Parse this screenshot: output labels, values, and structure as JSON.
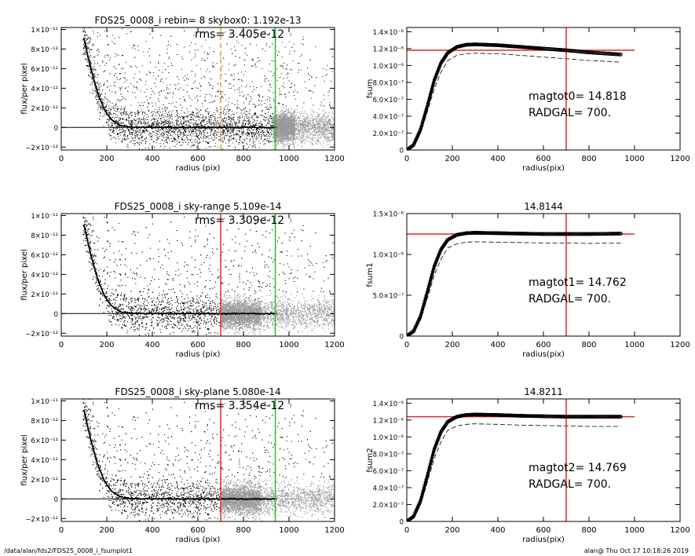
{
  "footer": {
    "path": "/data/alan/fds2/FDS25_0008_i_fsumplot1",
    "stamp": "alan@  Thu Oct 17 10:18:26 2019"
  },
  "colors": {
    "scatter_dark": "#000000",
    "scatter_light": "#9a9a9a",
    "profile": "#000000",
    "radgal_line": "#e8262a",
    "sky_line": "#22c32a",
    "skybox_dashed": "#f0a020",
    "fsum_line": "#e8262a"
  },
  "chart_data": [
    {
      "id": "row1-left",
      "type": "scatter",
      "title": "FDS25_0008_i rebin= 8    skybox0:  1.192e-13",
      "annotation": "rms= 3.405e-12",
      "xlabel": "radius (pix)",
      "ylabel": "flux/per pixel",
      "xlim": [
        0,
        1200
      ],
      "ylim": [
        -2.3e-12,
        1.02e-11
      ],
      "xticks": [
        "0",
        "200",
        "400",
        "600",
        "800",
        "1000",
        "1200"
      ],
      "yticks": [
        "1×10⁻¹¹",
        "8×10⁻¹²",
        "6×10⁻¹²",
        "4×10⁻¹²",
        "2×10⁻¹²",
        "0",
        "−2×10⁻¹²"
      ],
      "ytick_values": [
        1e-11,
        8e-12,
        6e-12,
        4e-12,
        2e-12,
        0,
        -2e-12
      ],
      "profile": {
        "x": [
          100,
          130,
          160,
          190,
          220,
          260,
          300,
          400,
          600,
          800,
          940
        ],
        "y": [
          9e-12,
          6e-12,
          3.5e-12,
          1.8e-12,
          8e-13,
          2e-13,
          5e-14,
          0,
          0,
          0,
          0
        ]
      },
      "vlines": [
        {
          "x": 700,
          "color": "#f0a020",
          "style": "dashed"
        },
        {
          "x": 940,
          "color": "#22c32a",
          "style": "solid"
        }
      ],
      "light_from": 930
    },
    {
      "id": "row1-right",
      "type": "line",
      "title": "",
      "xlabel": "radius(pix)",
      "ylabel": "fsum",
      "xlim": [
        0,
        1200
      ],
      "ylim": [
        0,
        1.45e-06
      ],
      "xticks": [
        "0",
        "200",
        "400",
        "600",
        "800",
        "1000",
        "1200"
      ],
      "yticks": [
        "1.4×10⁻⁶",
        "1.2×10⁻⁶",
        "1.0×10⁻⁶",
        "8.0×10⁻⁷",
        "6.0×10⁻⁷",
        "4.0×10⁻⁷",
        "2.0×10⁻⁷",
        "0"
      ],
      "ytick_values": [
        1.4e-06,
        1.2e-06,
        1e-06,
        8e-07,
        6e-07,
        4e-07,
        2e-07,
        0
      ],
      "fsum": {
        "x": [
          0,
          30,
          60,
          90,
          120,
          150,
          180,
          220,
          260,
          300,
          400,
          500,
          600,
          700,
          800,
          940
        ],
        "y": [
          0,
          6e-08,
          2.4e-07,
          5.2e-07,
          8.2e-07,
          1.03e-06,
          1.15e-06,
          1.22e-06,
          1.245e-06,
          1.25e-06,
          1.24e-06,
          1.22e-06,
          1.2e-06,
          1.18e-06,
          1.155e-06,
          1.13e-06
        ]
      },
      "dashed": {
        "x": [
          0,
          30,
          60,
          90,
          120,
          150,
          180,
          220,
          260,
          300,
          400,
          500,
          600,
          700,
          800,
          940
        ],
        "y": [
          0,
          5e-08,
          2e-07,
          4.5e-07,
          7.2e-07,
          9.2e-07,
          1.06e-06,
          1.12e-06,
          1.14e-06,
          1.145e-06,
          1.14e-06,
          1.12e-06,
          1.1e-06,
          1.08e-06,
          1.06e-06,
          1.04e-06
        ]
      },
      "hline": 1.18e-06,
      "vline": 700,
      "labels": [
        "magtot0=  14.818",
        "RADGAL=    700."
      ]
    },
    {
      "id": "row2-left",
      "type": "scatter",
      "title": "FDS25_0008_i sky-range  5.109e-14",
      "annotation": "rms= 3.309e-12",
      "xlabel": "radius (pix)",
      "ylabel": "flux/per pixel",
      "xlim": [
        0,
        1200
      ],
      "ylim": [
        -2.3e-12,
        1.02e-11
      ],
      "xticks": [
        "0",
        "200",
        "400",
        "600",
        "800",
        "1000",
        "1200"
      ],
      "yticks": [
        "1×10⁻¹¹",
        "8×10⁻¹²",
        "6×10⁻¹²",
        "4×10⁻¹²",
        "2×10⁻¹²",
        "0",
        "−2×10⁻¹²"
      ],
      "ytick_values": [
        1e-11,
        8e-12,
        6e-12,
        4e-12,
        2e-12,
        0,
        -2e-12
      ],
      "profile": {
        "x": [
          100,
          130,
          160,
          190,
          220,
          260,
          300,
          400,
          600,
          800,
          940
        ],
        "y": [
          9e-12,
          6e-12,
          3.5e-12,
          1.8e-12,
          8e-13,
          2e-13,
          5e-14,
          0,
          0,
          0,
          0
        ]
      },
      "vlines": [
        {
          "x": 700,
          "color": "#e8262a",
          "style": "solid"
        },
        {
          "x": 940,
          "color": "#22c32a",
          "style": "solid"
        }
      ],
      "light_from": 700
    },
    {
      "id": "row2-right",
      "type": "line",
      "title": "14.8144",
      "xlabel": "radius(pix)",
      "ylabel": "fsum1",
      "xlim": [
        0,
        1200
      ],
      "ylim": [
        0,
        1.5e-06
      ],
      "xticks": [
        "0",
        "200",
        "400",
        "600",
        "800",
        "1000",
        "1200"
      ],
      "yticks": [
        "1.5×10⁻⁶",
        "1.0×10⁻⁶",
        "5.0×10⁻⁷",
        "0"
      ],
      "ytick_values": [
        1.5e-06,
        1e-06,
        5e-07,
        0
      ],
      "fsum": {
        "x": [
          0,
          30,
          60,
          90,
          120,
          150,
          180,
          220,
          260,
          300,
          400,
          500,
          600,
          700,
          800,
          940
        ],
        "y": [
          0,
          6e-08,
          2.4e-07,
          5.4e-07,
          8.5e-07,
          1.06e-06,
          1.18e-06,
          1.24e-06,
          1.26e-06,
          1.265e-06,
          1.26e-06,
          1.255e-06,
          1.25e-06,
          1.25e-06,
          1.25e-06,
          1.255e-06
        ]
      },
      "dashed": {
        "x": [
          0,
          30,
          60,
          90,
          120,
          150,
          180,
          220,
          260,
          300,
          400,
          500,
          600,
          700,
          800,
          940
        ],
        "y": [
          0,
          5e-08,
          2e-07,
          4.6e-07,
          7.4e-07,
          9.4e-07,
          1.08e-06,
          1.13e-06,
          1.15e-06,
          1.155e-06,
          1.15e-06,
          1.145e-06,
          1.14e-06,
          1.14e-06,
          1.135e-06,
          1.14e-06
        ]
      },
      "hline": 1.25e-06,
      "vline": 700,
      "labels": [
        "magtot1=  14.762",
        "RADGAL=    700."
      ]
    },
    {
      "id": "row3-left",
      "type": "scatter",
      "title": "FDS25_0008_i sky-plane  5.080e-14",
      "annotation": "rms= 3.354e-12",
      "xlabel": "radius (pix)",
      "ylabel": "flux/per pixel",
      "xlim": [
        0,
        1200
      ],
      "ylim": [
        -2.3e-12,
        1.02e-11
      ],
      "xticks": [
        "0",
        "200",
        "400",
        "600",
        "800",
        "1000",
        "1200"
      ],
      "yticks": [
        "1×10⁻¹¹",
        "8×10⁻¹²",
        "6×10⁻¹²",
        "4×10⁻¹²",
        "2×10⁻¹²",
        "0",
        "−2×10⁻¹²"
      ],
      "ytick_values": [
        1e-11,
        8e-12,
        6e-12,
        4e-12,
        2e-12,
        0,
        -2e-12
      ],
      "profile": {
        "x": [
          100,
          130,
          160,
          190,
          220,
          260,
          300,
          400,
          600,
          800,
          940
        ],
        "y": [
          9e-12,
          6e-12,
          3.5e-12,
          1.8e-12,
          8e-13,
          2e-13,
          5e-14,
          0,
          0,
          0,
          0
        ]
      },
      "vlines": [
        {
          "x": 700,
          "color": "#e8262a",
          "style": "solid"
        },
        {
          "x": 940,
          "color": "#22c32a",
          "style": "solid"
        }
      ],
      "light_from": 700
    },
    {
      "id": "row3-right",
      "type": "line",
      "title": "14.8211",
      "xlabel": "radius(pix)",
      "ylabel": "fsum2",
      "xlim": [
        0,
        1200
      ],
      "ylim": [
        0,
        1.45e-06
      ],
      "xticks": [
        "0",
        "200",
        "400",
        "600",
        "800",
        "1000",
        "1200"
      ],
      "yticks": [
        "1.4×10⁻⁶",
        "1.2×10⁻⁶",
        "1.0×10⁻⁶",
        "8.0×10⁻⁷",
        "6.0×10⁻⁷",
        "4.0×10⁻⁷",
        "2.0×10⁻⁷",
        "0"
      ],
      "ytick_values": [
        1.4e-06,
        1.2e-06,
        1e-06,
        8e-07,
        6e-07,
        4e-07,
        2e-07,
        0
      ],
      "fsum": {
        "x": [
          0,
          30,
          60,
          90,
          120,
          150,
          180,
          220,
          260,
          300,
          400,
          500,
          600,
          700,
          800,
          940
        ],
        "y": [
          0,
          6e-08,
          2.4e-07,
          5.4e-07,
          8.5e-07,
          1.06e-06,
          1.18e-06,
          1.24e-06,
          1.26e-06,
          1.265e-06,
          1.26e-06,
          1.25e-06,
          1.245e-06,
          1.24e-06,
          1.24e-06,
          1.24e-06
        ]
      },
      "dashed": {
        "x": [
          0,
          30,
          60,
          90,
          120,
          150,
          180,
          220,
          260,
          300,
          400,
          500,
          600,
          700,
          800,
          940
        ],
        "y": [
          0,
          5e-08,
          2e-07,
          4.6e-07,
          7.4e-07,
          9.4e-07,
          1.08e-06,
          1.13e-06,
          1.15e-06,
          1.155e-06,
          1.15e-06,
          1.14e-06,
          1.135e-06,
          1.13e-06,
          1.125e-06,
          1.125e-06
        ]
      },
      "hline": 1.24e-06,
      "vline": 700,
      "labels": [
        "magtot2=  14.769",
        "RADGAL=    700."
      ]
    }
  ]
}
